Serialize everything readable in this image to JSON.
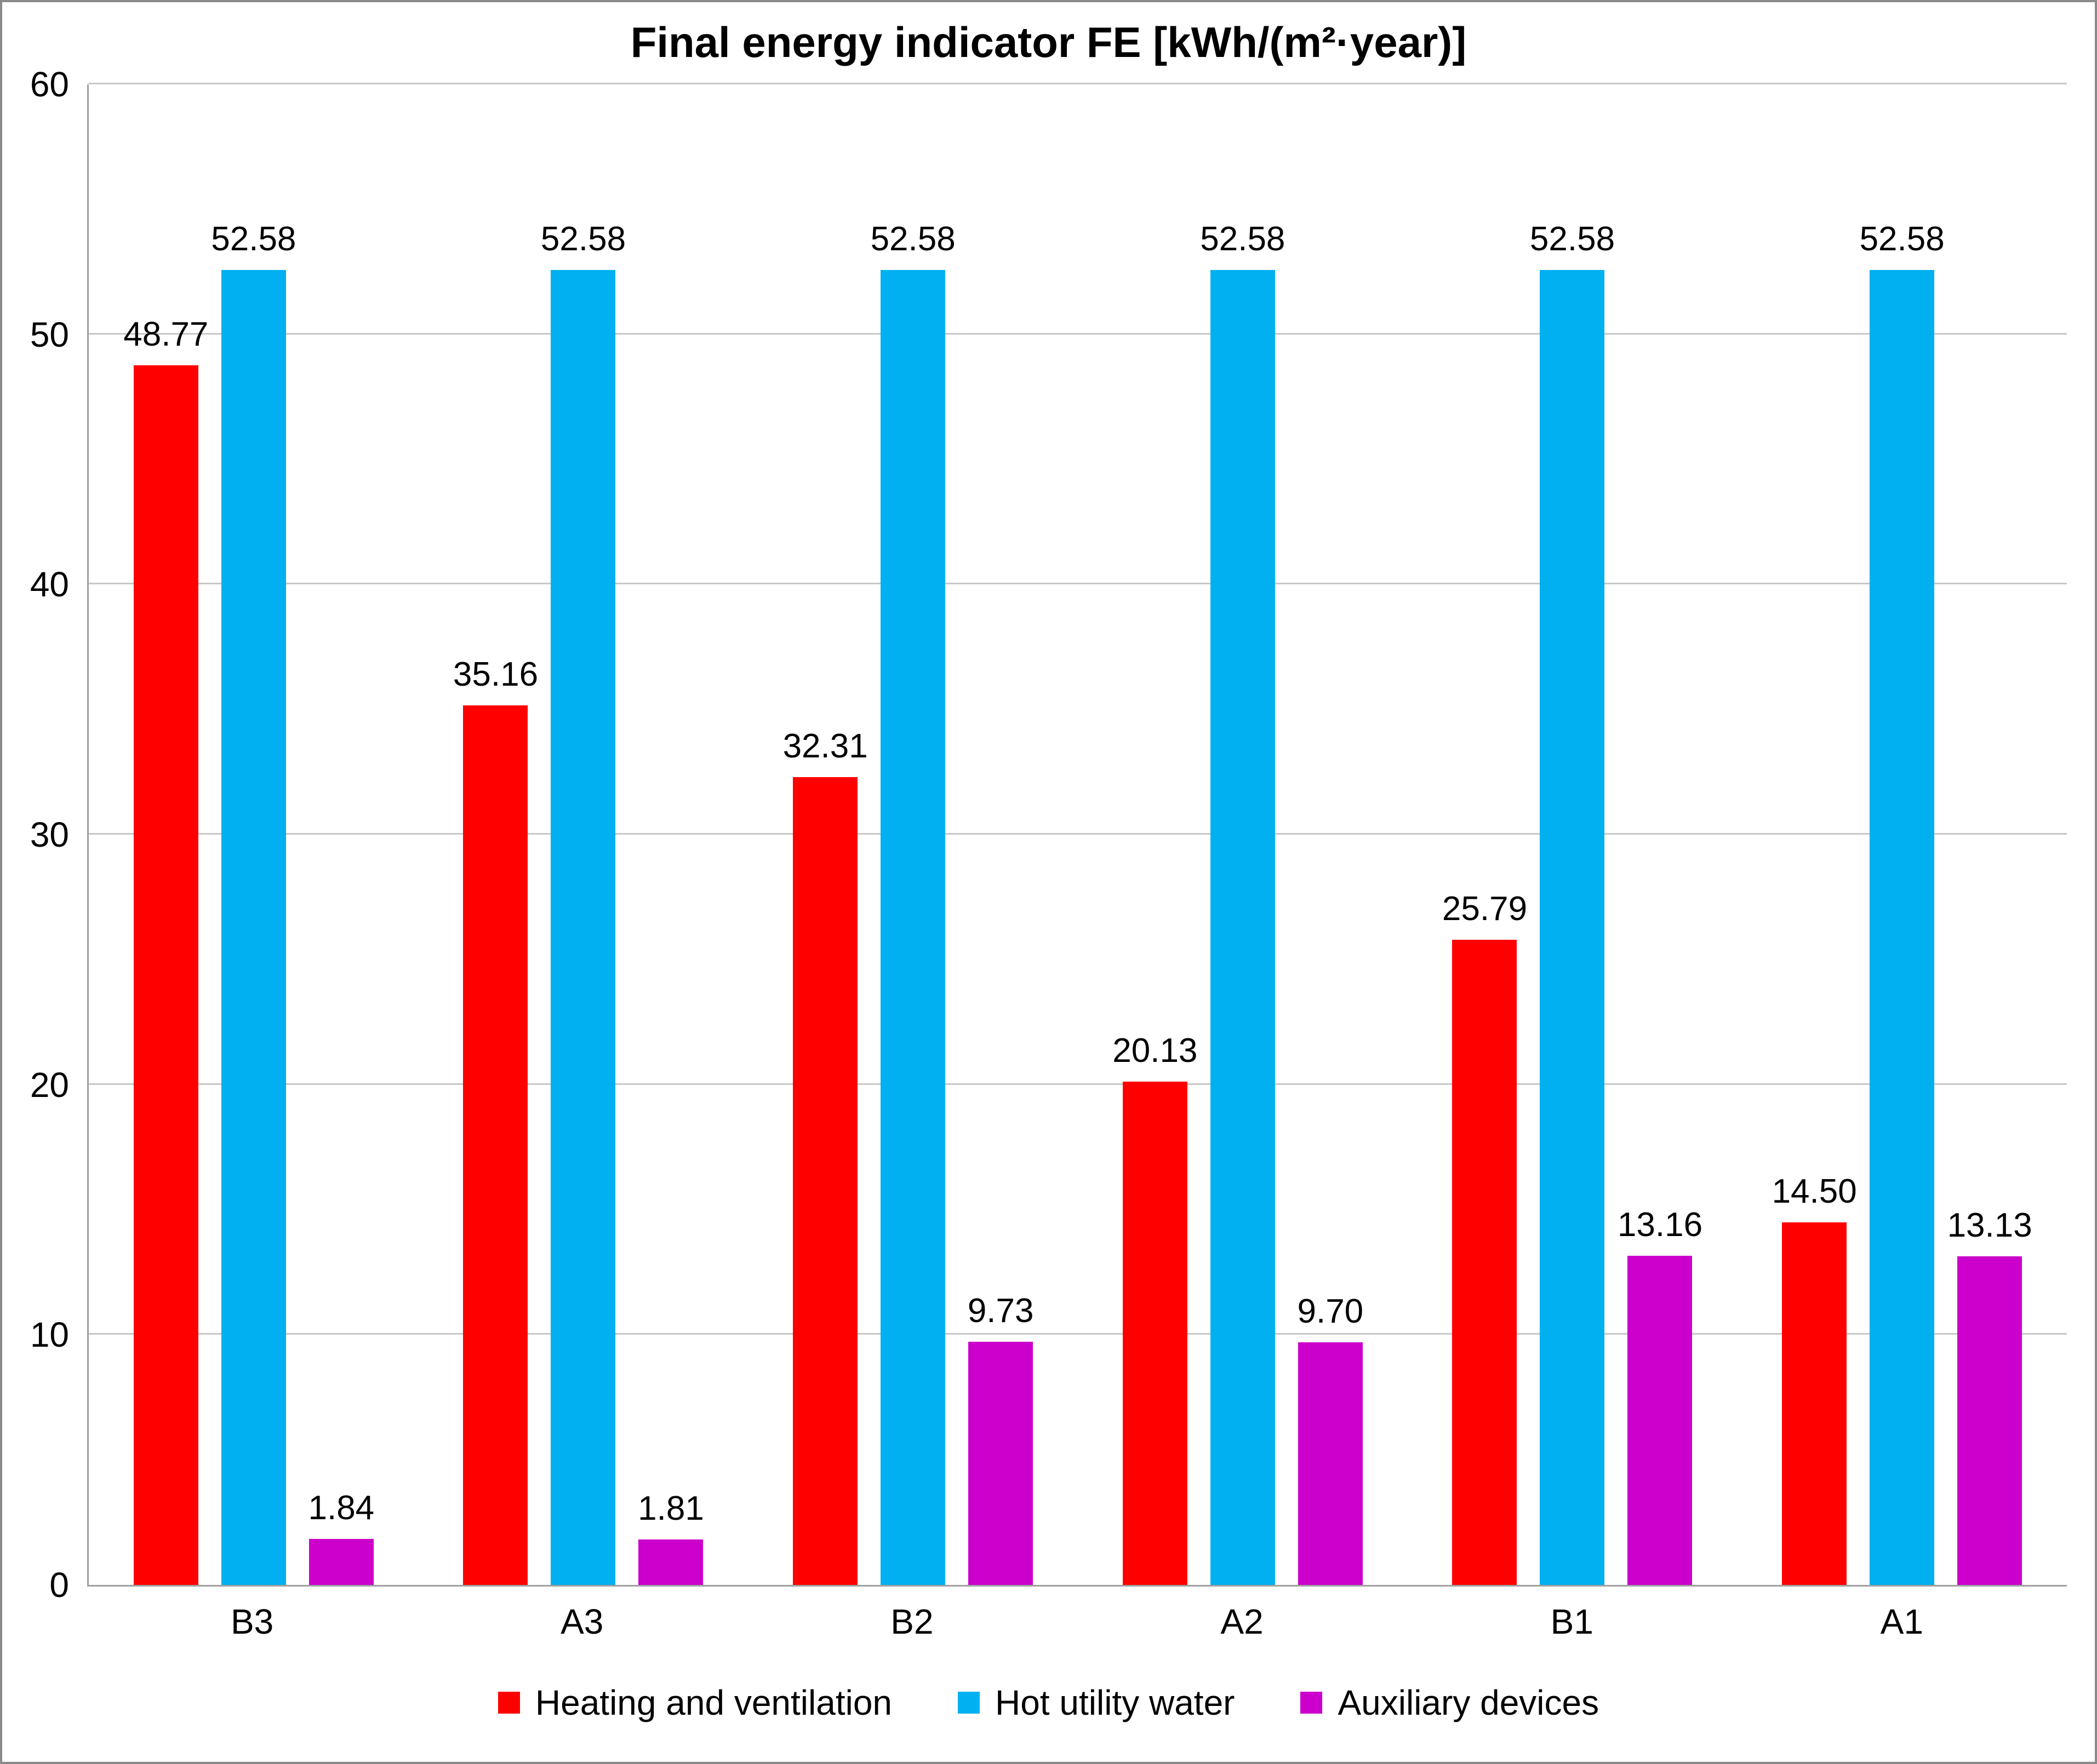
{
  "chart_data": {
    "type": "bar",
    "title": "Final energy indicator FE [kWh/(m²·year)]",
    "categories": [
      "B3",
      "A3",
      "B2",
      "A2",
      "B1",
      "A1"
    ],
    "series": [
      {
        "name": "Heating and ventilation",
        "color": "#fe0000",
        "values": [
          48.77,
          35.16,
          32.31,
          20.13,
          25.79,
          14.5
        ]
      },
      {
        "name": "Hot utility water",
        "color": "#00b0f0",
        "values": [
          52.58,
          52.58,
          52.58,
          52.58,
          52.58,
          52.58
        ]
      },
      {
        "name": "Auxiliary devices",
        "color": "#cc00cc",
        "values": [
          1.84,
          1.81,
          9.73,
          9.7,
          13.16,
          13.13
        ]
      }
    ],
    "ylim": [
      0,
      60
    ],
    "ytick_step": 10,
    "yticks": [
      0,
      10,
      20,
      30,
      40,
      50,
      60
    ],
    "grid": true,
    "legend_position": "bottom",
    "value_labels": true,
    "value_label_decimals": 2
  }
}
